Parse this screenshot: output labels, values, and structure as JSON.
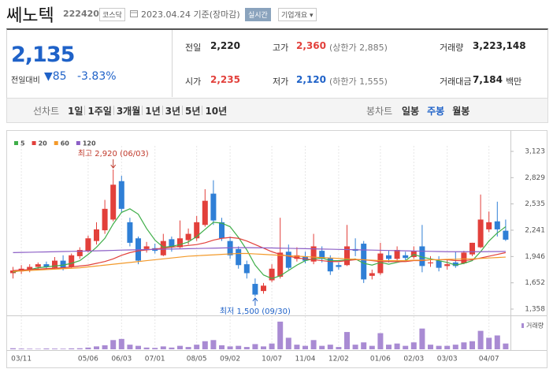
{
  "header": {
    "title": "쎄노텍",
    "code": "222420",
    "market": "코스닥",
    "date": "2023.04.24 기준(장마감)",
    "realtime": "실시간",
    "overview": "기업개요"
  },
  "quote": {
    "price": "2,135",
    "change_label": "전일대비",
    "change": "▼85",
    "change_pct": "-3.83%",
    "items": [
      {
        "label": "전일",
        "value": "2,220"
      },
      {
        "label": "고가",
        "value": "2,360",
        "note": "(상한가 2,885)"
      },
      {
        "label": "거래량",
        "value": "3,223,148"
      },
      {
        "label": "시가",
        "value": "2,235"
      },
      {
        "label": "저가",
        "value": "2,120",
        "note": "(하한가 1,555)"
      },
      {
        "label": "거래대금",
        "value": "7,184",
        "unit": "백만"
      }
    ]
  },
  "toolbar": {
    "line_label": "선차트",
    "line_periods": [
      "1일",
      "1주일",
      "3개월",
      "1년",
      "3년",
      "5년",
      "10년"
    ],
    "candle_label": "봉차트",
    "candle_periods": [
      "일봉",
      "주봉",
      "월봉"
    ],
    "selected": "주봉"
  },
  "chart_data": {
    "type": "candlestick",
    "categories": [
      null,
      "03/11",
      null,
      null,
      null,
      null,
      null,
      null,
      null,
      "05/06",
      null,
      null,
      null,
      "06/03",
      null,
      null,
      null,
      "07/01",
      null,
      null,
      null,
      null,
      "08/05",
      null,
      null,
      null,
      "09/02",
      null,
      null,
      null,
      null,
      "10/07",
      null,
      null,
      null,
      "11/04",
      null,
      null,
      null,
      "12/02",
      null,
      null,
      null,
      null,
      "01/06",
      null,
      null,
      null,
      "02/03",
      null,
      null,
      null,
      "03/03",
      null,
      null,
      null,
      null,
      "04/07",
      null,
      null
    ],
    "candles": {
      "up_color": "#e2403b",
      "down_color": "#2f7fd6",
      "open": [
        1760,
        1780,
        1800,
        1830,
        1860,
        1820,
        1900,
        1830,
        1950,
        2010,
        2120,
        2240,
        2360,
        2790,
        2330,
        2150,
        2030,
        2040,
        1960,
        2140,
        2050,
        2130,
        2150,
        2300,
        2650,
        2330,
        2120,
        2030,
        1860,
        1640,
        1560,
        1680,
        1720,
        2000,
        1920,
        1950,
        1890,
        2010,
        1930,
        1850,
        1850,
        2030,
        2090,
        1730,
        1760,
        1960,
        1920,
        1960,
        1940,
        2060,
        1870,
        1900,
        1840,
        1880,
        1870,
        1970,
        2050,
        2250,
        2340,
        2235
      ],
      "high": [
        1830,
        1850,
        1860,
        1880,
        1890,
        1940,
        1960,
        1980,
        2050,
        2180,
        2330,
        2580,
        2920,
        2850,
        2380,
        2170,
        2110,
        2090,
        2200,
        2170,
        2350,
        2260,
        2400,
        2700,
        2800,
        2380,
        2170,
        2060,
        1900,
        1700,
        1650,
        1860,
        2380,
        2080,
        2050,
        2000,
        2200,
        2060,
        1960,
        1880,
        2300,
        2150,
        2120,
        1800,
        2100,
        2010,
        2060,
        2000,
        2060,
        2300,
        1950,
        1950,
        1910,
        2000,
        2010,
        2100,
        2640,
        2450,
        2560,
        2360
      ],
      "low": [
        1700,
        1750,
        1770,
        1800,
        1800,
        1800,
        1790,
        1820,
        1920,
        1990,
        2080,
        2200,
        2340,
        2440,
        2060,
        1860,
        1990,
        1980,
        1950,
        2000,
        2040,
        2080,
        2120,
        2280,
        2300,
        2120,
        1920,
        1810,
        1700,
        1500,
        1530,
        1660,
        1700,
        1800,
        1890,
        1870,
        1860,
        1880,
        1740,
        1800,
        1840,
        1950,
        1650,
        1690,
        1740,
        1880,
        1900,
        1900,
        1920,
        1770,
        1830,
        1780,
        1800,
        1820,
        1860,
        1950,
        2040,
        2220,
        2170,
        2120
      ],
      "close": [
        1790,
        1810,
        1830,
        1860,
        1830,
        1900,
        1820,
        1960,
        2020,
        2150,
        2250,
        2480,
        2750,
        2480,
        2100,
        1900,
        2060,
        2010,
        2120,
        2050,
        2150,
        2200,
        2330,
        2570,
        2350,
        2150,
        1960,
        1850,
        1760,
        1520,
        1620,
        1810,
        1990,
        1820,
        1960,
        1900,
        2060,
        1920,
        1780,
        1830,
        2060,
        2010,
        1690,
        1760,
        1980,
        1920,
        2020,
        1930,
        2010,
        1840,
        1880,
        1820,
        1860,
        1840,
        1990,
        2100,
        2360,
        2330,
        2250,
        2135
      ]
    },
    "series": [
      {
        "name": "5",
        "color": "#3fae49",
        "values": [
          1770,
          1790,
          1800,
          1820,
          1830,
          1840,
          1850,
          1870,
          1900,
          1970,
          2050,
          2150,
          2310,
          2440,
          2480,
          2420,
          2260,
          2130,
          2050,
          2060,
          2080,
          2110,
          2170,
          2250,
          2330,
          2320,
          2280,
          2160,
          2020,
          1850,
          1740,
          1700,
          1730,
          1790,
          1850,
          1900,
          1920,
          1930,
          1900,
          1900,
          1910,
          1920,
          1870,
          1850,
          1880,
          1860,
          1880,
          1900,
          1970,
          1940,
          1920,
          1900,
          1880,
          1850,
          1870,
          1900,
          2000,
          2120,
          2210,
          2280
        ]
      },
      {
        "name": "20",
        "color": "#e2403b",
        "values": [
          1790,
          1795,
          1800,
          1805,
          1810,
          1815,
          1820,
          1830,
          1840,
          1850,
          1870,
          1890,
          1920,
          1960,
          1990,
          2010,
          2020,
          2030,
          2040,
          2050,
          2060,
          2070,
          2080,
          2100,
          2130,
          2150,
          2160,
          2150,
          2120,
          2080,
          2040,
          2000,
          1970,
          1950,
          1930,
          1920,
          1910,
          1900,
          1890,
          1890,
          1900,
          1910,
          1910,
          1900,
          1890,
          1890,
          1890,
          1890,
          1900,
          1900,
          1910,
          1910,
          1910,
          1900,
          1900,
          1910,
          1930,
          1950,
          1970,
          1990
        ]
      },
      {
        "name": "60",
        "color": "#f39a2b",
        "values": [
          1780,
          1785,
          1790,
          1795,
          1800,
          1805,
          1810,
          1815,
          1820,
          1830,
          1840,
          1850,
          1860,
          1870,
          1880,
          1890,
          1900,
          1910,
          1920,
          1930,
          1940,
          1950,
          1955,
          1960,
          1965,
          1970,
          1975,
          1980,
          1980,
          1975,
          1970,
          1965,
          1960,
          1955,
          1950,
          1945,
          1940,
          1935,
          1930,
          1925,
          1920,
          1915,
          1910,
          1905,
          1900,
          1900,
          1900,
          1900,
          1905,
          1905,
          1910,
          1910,
          1915,
          1915,
          1920,
          1920,
          1925,
          1930,
          1935,
          1940
        ]
      },
      {
        "name": "120",
        "color": "#8c5fc6",
        "values": [
          1990,
          1992,
          1994,
          1996,
          1998,
          2000,
          2002,
          2004,
          2006,
          2008,
          2010,
          2012,
          2015,
          2018,
          2020,
          2022,
          2024,
          2026,
          2028,
          2030,
          2032,
          2034,
          2036,
          2038,
          2040,
          2042,
          2044,
          2045,
          2045,
          2044,
          2043,
          2042,
          2040,
          2038,
          2036,
          2034,
          2032,
          2030,
          2028,
          2026,
          2024,
          2022,
          2020,
          2018,
          2016,
          2014,
          2012,
          2010,
          2008,
          2006,
          2004,
          2002,
          2000,
          2000,
          2000,
          2000,
          2000,
          2001,
          2002,
          2003
        ]
      }
    ],
    "ylim": [
      1358,
      3123
    ],
    "yticks": [
      {
        "value": 1358,
        "label": "1,358"
      },
      {
        "value": 1652,
        "label": "1,652"
      },
      {
        "value": 1946,
        "label": "1,946"
      },
      {
        "value": 2241,
        "label": "2,241"
      },
      {
        "value": 2535,
        "label": "2,535"
      },
      {
        "value": 2829,
        "label": "2,829"
      },
      {
        "value": 3123,
        "label": "3,123"
      }
    ],
    "annotations": {
      "high": "최고 2,920 (06/03)",
      "low": "최저 1,500 (09/30)"
    },
    "volume": {
      "name": "거래량",
      "color": "#a98bd3",
      "lim": [
        0,
        26000000
      ],
      "values": [
        900000,
        600000,
        500000,
        400000,
        700000,
        600000,
        500000,
        800000,
        900000,
        1500000,
        2500000,
        3500000,
        8000000,
        9000000,
        4000000,
        3000000,
        1500000,
        1200000,
        2500000,
        1500000,
        3000000,
        2000000,
        4000000,
        7000000,
        8000000,
        3500000,
        2500000,
        3000000,
        2000000,
        4500000,
        2500000,
        5000000,
        24000000,
        10000000,
        4000000,
        3000000,
        8000000,
        3000000,
        4000000,
        2000000,
        15000000,
        4000000,
        6000000,
        3000000,
        14000000,
        4000000,
        5000000,
        3000000,
        6000000,
        18000000,
        4000000,
        3000000,
        3000000,
        4000000,
        6000000,
        7000000,
        16000000,
        10000000,
        12000000,
        5000000
      ]
    }
  }
}
